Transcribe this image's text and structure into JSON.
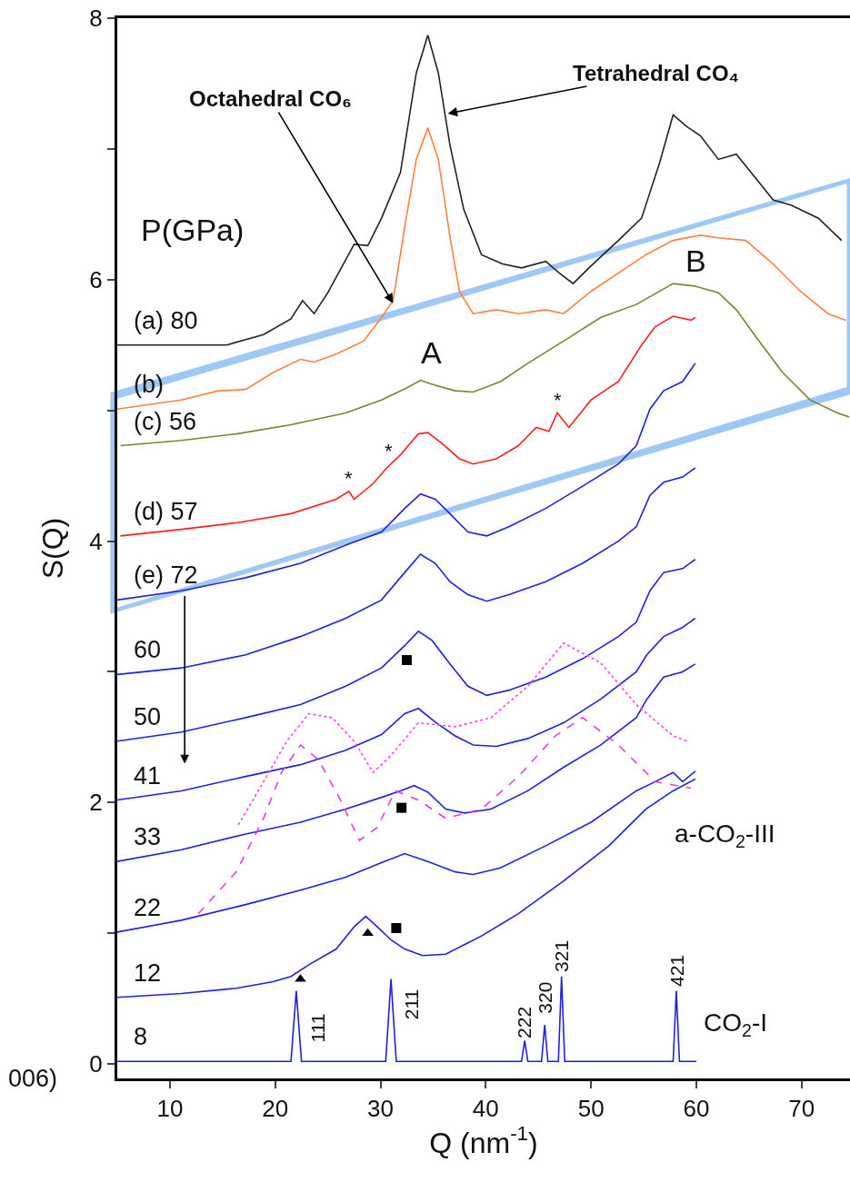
{
  "chart_data": {
    "type": "line",
    "xlabel": "Q (nm$^{-1}$)",
    "ylabel": "S(Q)",
    "xlim": [
      5,
      74.6
    ],
    "ylim": [
      -0.11,
      8
    ],
    "xticks": [
      10,
      20,
      30,
      40,
      50,
      60,
      70
    ],
    "yticks": [
      0,
      {
        "value": 1,
        "label": null
      },
      2,
      {
        "value": 3,
        "label": null
      },
      4,
      {
        "value": 5,
        "label": null
      },
      6,
      {
        "value": 7,
        "label": null
      },
      8
    ],
    "grid": false,
    "series": [
      {
        "name": "(a) 80",
        "color": "#222222",
        "line_style": "solid",
        "x": [
          5,
          15.4,
          18.9,
          21.5,
          22.6,
          23.7,
          25,
          27.5,
          28.8,
          30.1,
          31.9,
          33.4,
          34.5,
          35.5,
          36.6,
          37.9,
          39.6,
          41.6,
          43.4,
          45.7,
          47,
          48.3,
          49.8,
          52.6,
          54.8,
          56.5,
          57.8,
          59.1,
          60.4,
          62.1,
          63.8,
          65.6,
          67.3,
          69,
          71.6,
          73.8
        ],
        "values": [
          5.5,
          5.5,
          5.58,
          5.7,
          5.84,
          5.74,
          5.9,
          6.27,
          6.26,
          6.47,
          6.82,
          7.58,
          7.87,
          7.58,
          7.03,
          6.54,
          6.19,
          6.12,
          6.09,
          6.14,
          6.05,
          5.97,
          6.09,
          6.3,
          6.47,
          6.89,
          7.26,
          7.17,
          7.1,
          6.92,
          6.96,
          6.78,
          6.61,
          6.57,
          6.47,
          6.3
        ]
      },
      {
        "name": "(b)",
        "color": "#ff8040",
        "line_style": "solid",
        "x": [
          5,
          11.1,
          14.6,
          17.2,
          19.8,
          22.4,
          23.7,
          25.8,
          28.4,
          30.1,
          31.2,
          32.3,
          33.4,
          34.5,
          35.5,
          36.6,
          37.5,
          38.8,
          41,
          43.1,
          45.7,
          47.4,
          50,
          52.6,
          55.2,
          57.8,
          60.4,
          62.1,
          64.7,
          67.3,
          69.9,
          72.5,
          74.2
        ],
        "values": [
          5.01,
          5.08,
          5.15,
          5.16,
          5.29,
          5.39,
          5.37,
          5.43,
          5.53,
          5.71,
          5.84,
          6.4,
          6.92,
          7.16,
          6.92,
          6.33,
          5.91,
          5.74,
          5.77,
          5.74,
          5.77,
          5.74,
          5.91,
          6.05,
          6.19,
          6.3,
          6.34,
          6.32,
          6.3,
          6.12,
          5.91,
          5.74,
          5.69
        ]
      },
      {
        "name": "(c) 56",
        "color": "#808033",
        "line_style": "solid",
        "x": [
          5.3,
          11.1,
          16.3,
          21.5,
          26.7,
          30.1,
          32.7,
          33.8,
          34.9,
          37.1,
          38.8,
          41.4,
          44,
          47.4,
          50.9,
          54.3,
          57.8,
          59.9,
          62.1,
          63.8,
          65.6,
          68.2,
          70.8,
          73.4,
          74.5
        ],
        "values": [
          4.73,
          4.77,
          4.82,
          4.89,
          4.98,
          5.08,
          5.18,
          5.23,
          5.2,
          5.15,
          5.14,
          5.22,
          5.36,
          5.53,
          5.71,
          5.81,
          5.97,
          5.95,
          5.9,
          5.77,
          5.57,
          5.29,
          5.08,
          4.98,
          4.95
        ]
      },
      {
        "name": "(d) 57",
        "color": "#ff2020",
        "line_style": "solid",
        "x": [
          5.3,
          11.1,
          16.3,
          21.5,
          25.8,
          27,
          27.5,
          29.3,
          30.6,
          31.9,
          33.6,
          34.5,
          35.8,
          37.5,
          38.8,
          41,
          43.1,
          44.8,
          46,
          46.8,
          47.9,
          50,
          52.6,
          54.8,
          56.1,
          57.8,
          59.5,
          59.9
        ],
        "values": [
          4.04,
          4.09,
          4.14,
          4.21,
          4.32,
          4.38,
          4.32,
          4.44,
          4.56,
          4.66,
          4.82,
          4.83,
          4.75,
          4.63,
          4.59,
          4.63,
          4.73,
          4.87,
          4.84,
          4.98,
          4.87,
          5.08,
          5.22,
          5.5,
          5.64,
          5.72,
          5.69,
          5.71
        ]
      },
      {
        "name": "(e) 72",
        "color": "#2020e0",
        "line_style": "solid",
        "x": [
          5,
          11.1,
          17.2,
          22.4,
          26.7,
          30.1,
          32.3,
          33.8,
          35.2,
          36.6,
          38.3,
          40.1,
          42.2,
          45.7,
          49.2,
          52.6,
          54.3,
          55.6,
          56.9,
          58.7,
          59.9
        ],
        "values": [
          3.55,
          3.62,
          3.72,
          3.83,
          3.97,
          4.07,
          4.25,
          4.36,
          4.32,
          4.21,
          4.07,
          4.04,
          4.11,
          4.25,
          4.42,
          4.59,
          4.73,
          5.01,
          5.15,
          5.22,
          5.36
        ]
      },
      {
        "name": "60",
        "color": "#2020e0",
        "line_style": "solid",
        "x": [
          5,
          11.1,
          17.2,
          22.4,
          26.7,
          30.1,
          32.3,
          33.8,
          35.2,
          36.6,
          38.3,
          40.1,
          42.2,
          45.7,
          49.2,
          52.6,
          54.3,
          55.6,
          56.9,
          58.7,
          59.9
        ],
        "values": [
          2.98,
          3.03,
          3.13,
          3.27,
          3.41,
          3.55,
          3.76,
          3.9,
          3.83,
          3.69,
          3.59,
          3.54,
          3.59,
          3.69,
          3.83,
          4.0,
          4.11,
          4.35,
          4.45,
          4.49,
          4.56
        ]
      },
      {
        "name": "50",
        "color": "#2020e0",
        "line_style": "solid",
        "x": [
          5,
          11.1,
          17.2,
          22.4,
          26.7,
          30.1,
          32.3,
          33.6,
          34.9,
          36.6,
          38.3,
          40.1,
          42.2,
          45.7,
          49.2,
          52.6,
          54.3,
          55.6,
          56.9,
          58.7,
          59.9
        ],
        "values": [
          2.47,
          2.54,
          2.65,
          2.75,
          2.89,
          3.03,
          3.2,
          3.31,
          3.24,
          3.06,
          2.89,
          2.82,
          2.86,
          2.96,
          3.1,
          3.27,
          3.38,
          3.62,
          3.76,
          3.79,
          3.86
        ]
      },
      {
        "name": "41",
        "color": "#2020e0",
        "line_style": "solid",
        "x": [
          5,
          11.1,
          17.2,
          22.4,
          26.7,
          30.1,
          32.3,
          33.6,
          35.3,
          37.1,
          38.8,
          41,
          44,
          47.4,
          50.9,
          54.3,
          55.3,
          56.9,
          58.7,
          59.9
        ],
        "values": [
          2.02,
          2.09,
          2.2,
          2.29,
          2.4,
          2.52,
          2.68,
          2.72,
          2.61,
          2.51,
          2.44,
          2.43,
          2.49,
          2.61,
          2.79,
          3.0,
          3.13,
          3.27,
          3.34,
          3.41
        ]
      },
      {
        "name": "33",
        "color": "#2020e0",
        "line_style": "solid",
        "x": [
          5,
          11.1,
          17.2,
          22.4,
          26.7,
          30.1,
          31.9,
          33.2,
          34.5,
          36.2,
          38,
          40.5,
          44,
          47.4,
          50.9,
          54.3,
          55.3,
          56.9,
          58.7,
          59.9
        ],
        "values": [
          1.55,
          1.64,
          1.76,
          1.85,
          1.95,
          2.04,
          2.09,
          2.13,
          2.08,
          1.95,
          1.92,
          1.95,
          2.09,
          2.27,
          2.44,
          2.65,
          2.79,
          2.96,
          3.0,
          3.06
        ]
      },
      {
        "name": "22",
        "color": "#2020e0",
        "line_style": "solid",
        "x": [
          5,
          11.1,
          17.2,
          22.4,
          26.7,
          30.1,
          32.3,
          34.5,
          37.1,
          38.8,
          41.4,
          45.7,
          50,
          54.3,
          56.1,
          57.8,
          58.7,
          59.9
        ],
        "values": [
          1.01,
          1.1,
          1.22,
          1.33,
          1.43,
          1.54,
          1.61,
          1.55,
          1.47,
          1.45,
          1.5,
          1.67,
          1.85,
          2.09,
          2.16,
          2.23,
          2.16,
          2.24
        ]
      },
      {
        "name": "12",
        "color": "#2020e0",
        "line_style": "solid",
        "x": [
          5,
          11.1,
          16.3,
          19.8,
          21.5,
          23.2,
          25.8,
          27.5,
          28.6,
          29.7,
          31,
          32.3,
          34,
          36.2,
          39.6,
          43.1,
          47.4,
          51.7,
          55.2,
          57.8,
          59.9
        ],
        "values": [
          0.51,
          0.54,
          0.58,
          0.63,
          0.67,
          0.76,
          0.88,
          1.05,
          1.13,
          1.05,
          0.95,
          0.88,
          0.83,
          0.84,
          0.98,
          1.15,
          1.4,
          1.67,
          1.95,
          2.09,
          2.18
        ]
      },
      {
        "name": "8",
        "color": "#2020e0",
        "line_style": "solid",
        "x": [
          5,
          21.5,
          22,
          22.5,
          30.5,
          31,
          31.5,
          43.4,
          43.7,
          44,
          45.3,
          45.6,
          45.9,
          46.9,
          47.2,
          47.5,
          57.8,
          58.1,
          58.4,
          60
        ],
        "values": [
          0.02,
          0.02,
          0.56,
          0.02,
          0.02,
          0.65,
          0.02,
          0.02,
          0.18,
          0.02,
          0.02,
          0.3,
          0.02,
          0.02,
          0.67,
          0.02,
          0.02,
          0.56,
          0.02,
          0.02
        ]
      },
      {
        "color": "#ff40ff",
        "line_style": "dotted",
        "x": [
          16.5,
          18.9,
          21.1,
          23.2,
          25.4,
          27.5,
          29.3,
          31,
          33.6,
          37.1,
          40.5,
          44,
          47.4,
          50.9,
          54.3,
          57.8,
          59.1
        ],
        "values": [
          1.83,
          2.16,
          2.47,
          2.68,
          2.65,
          2.47,
          2.23,
          2.36,
          2.61,
          2.58,
          2.65,
          2.89,
          3.22,
          3.07,
          2.75,
          2.51,
          2.47
        ]
      },
      {
        "color": "#e040e0",
        "line_style": "dashed",
        "x": [
          12.7,
          16.3,
          18.9,
          20.6,
          22.4,
          24.1,
          26.2,
          28,
          29.7,
          31.4,
          33.6,
          36.2,
          39.6,
          43.1,
          46.6,
          49.2,
          52.6,
          56.1,
          59.5
        ],
        "values": [
          1.15,
          1.47,
          1.88,
          2.23,
          2.44,
          2.33,
          2.02,
          1.71,
          1.81,
          2.09,
          2.02,
          1.88,
          1.95,
          2.2,
          2.51,
          2.65,
          2.44,
          2.16,
          2.11
        ]
      },
      {
        "type": "scatter",
        "marker": "square",
        "color": "#000000",
        "x": [
          32.5,
          32,
          31.5
        ],
        "values": [
          3.09,
          1.96,
          1.04
        ]
      },
      {
        "type": "scatter",
        "marker": "triangle",
        "color": "#000000",
        "x": [
          28.8,
          22.4
        ],
        "values": [
          1.0,
          0.65
        ]
      }
    ],
    "annotations": [
      "P(GPa)",
      "006)",
      {
        "text": "Octahedral CO₆",
        "x": 31.2,
        "y": 5.82
      },
      {
        "text": "Tetrahedral CO₄",
        "x": 36.4,
        "y": 7.27
      },
      "A",
      "B",
      {
        "text": "*",
        "x": 27,
        "y": 4.38
      },
      {
        "text": "*",
        "x": 30.8,
        "y": 4.59
      },
      {
        "text": "*",
        "x": 46.8,
        "y": 4.98
      },
      {
        "text": "111",
        "x": 22,
        "y": 0.56
      },
      {
        "text": "211",
        "x": 31,
        "y": 0.65
      },
      {
        "text": "222",
        "x": 43.7,
        "y": 0.18
      },
      {
        "text": "320",
        "x": 45.6,
        "y": 0.3
      },
      {
        "text": "321",
        "x": 47.2,
        "y": 0.67
      },
      {
        "text": "421",
        "x": 58.1,
        "y": 0.56
      },
      "a-CO$_{2}$-III",
      "CO$_{2}$-I"
    ]
  }
}
